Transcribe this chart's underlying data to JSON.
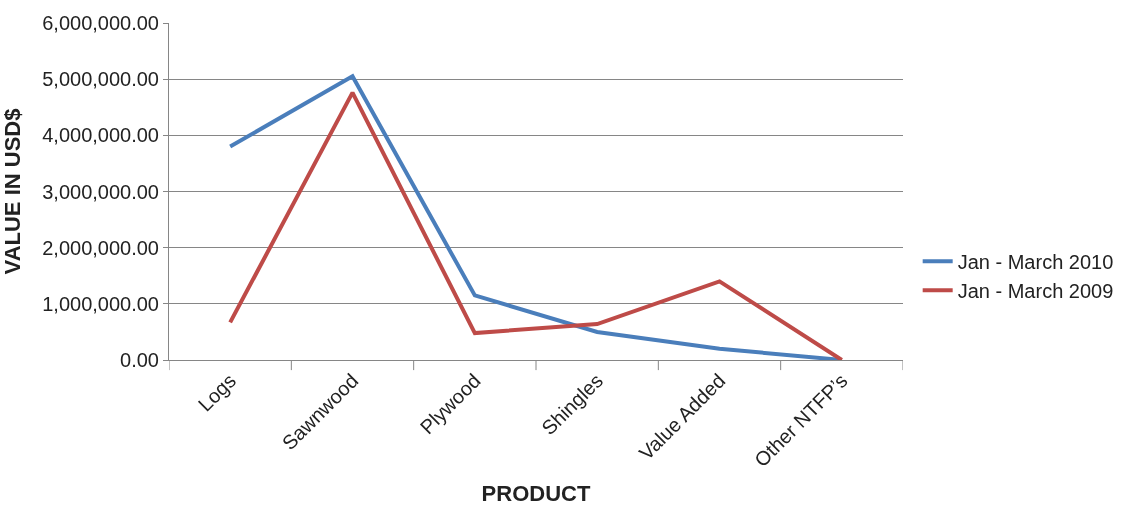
{
  "chart_data": {
    "type": "line",
    "xlabel": "PRODUCT",
    "ylabel": "VALUE IN USD$",
    "categories": [
      "Logs",
      "Sawnwood",
      "Plywood",
      "Shingles",
      "Value Added",
      "Other NTFP’s"
    ],
    "series": [
      {
        "name": "Jan - March 2010",
        "color": "#4a7ebb",
        "values": [
          3800000,
          5050000,
          1150000,
          500000,
          200000,
          0
        ]
      },
      {
        "name": "Jan - March 2009",
        "color": "#be4b48",
        "values": [
          670000,
          4760000,
          480000,
          640000,
          1400000,
          0
        ]
      }
    ],
    "ylim": [
      0,
      6000000
    ],
    "yticks": [
      {
        "value": 0,
        "label": "0.00"
      },
      {
        "value": 1000000,
        "label": "1,000,000.00"
      },
      {
        "value": 2000000,
        "label": "2,000,000.00"
      },
      {
        "value": 3000000,
        "label": "3,000,000.00"
      },
      {
        "value": 4000000,
        "label": "4,000,000.00"
      },
      {
        "value": 5000000,
        "label": "5,000,000.00"
      },
      {
        "value": 6000000,
        "label": "6,000,000.00"
      }
    ],
    "grid": "y",
    "legend": "right",
    "marker": "none",
    "line_style": "solid"
  }
}
